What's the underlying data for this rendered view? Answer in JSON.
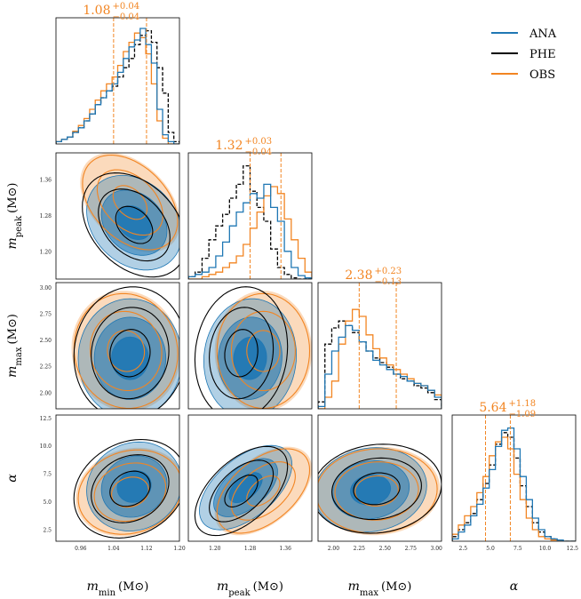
{
  "colors": {
    "ANA": "#1f77b4",
    "PHE": "#000000",
    "OBS": "#F28522",
    "fill_dark": "#1f77b4"
  },
  "legend": [
    {
      "label": "ANA",
      "color": "#1f77b4"
    },
    {
      "label": "PHE",
      "color": "#000000"
    },
    {
      "label": "OBS",
      "color": "#F28522"
    }
  ],
  "chart_data": {
    "type": "corner",
    "parameters": [
      {
        "key": "m_min",
        "label_sym": "m",
        "label_sub": "min",
        "label_unit": "(M⊙)",
        "range": [
          0.9,
          1.2
        ],
        "ticks": [
          "0.96",
          "1.04",
          "1.12",
          "1.20"
        ],
        "tick_values": [
          0.96,
          1.04,
          1.12,
          1.2
        ]
      },
      {
        "key": "m_peak",
        "label_sym": "m",
        "label_sub": "peak",
        "label_unit": "(M⊙)",
        "range": [
          1.14,
          1.42
        ],
        "ticks": [
          "1.20",
          "1.28",
          "1.36"
        ],
        "tick_values": [
          1.2,
          1.28,
          1.36
        ]
      },
      {
        "key": "m_max",
        "label_sym": "m",
        "label_sub": "max",
        "label_unit": "(M⊙)",
        "range": [
          1.85,
          3.05
        ],
        "ticks": [
          "2.00",
          "2.25",
          "2.50",
          "2.75",
          "3.00"
        ],
        "tick_values": [
          2.0,
          2.25,
          2.5,
          2.75,
          3.0
        ]
      },
      {
        "key": "alpha",
        "label_sym": "α",
        "label_sub": "",
        "label_unit": "",
        "range": [
          1.5,
          12.8
        ],
        "ticks": [
          "2.5",
          "5.0",
          "7.5",
          "10.0",
          "12.5"
        ],
        "tick_values": [
          2.5,
          5.0,
          7.5,
          10.0,
          12.5
        ]
      }
    ],
    "titles": [
      {
        "median": "1.08",
        "plus": "+0.04",
        "minus": "−0.04",
        "lo": 1.04,
        "hi": 1.12
      },
      {
        "median": "1.32",
        "plus": "+0.03",
        "minus": "−0.04",
        "lo": 1.28,
        "hi": 1.35
      },
      {
        "median": "2.38",
        "plus": "+0.23",
        "minus": "−0.13",
        "lo": 2.25,
        "hi": 2.61
      },
      {
        "median": "5.64",
        "plus": "+1.18",
        "minus": "−1.09",
        "lo": 4.55,
        "hi": 6.82
      }
    ],
    "histograms": [
      {
        "ANA": [
          0.02,
          0.04,
          0.06,
          0.1,
          0.14,
          0.2,
          0.26,
          0.34,
          0.4,
          0.46,
          0.52,
          0.62,
          0.74,
          0.84,
          0.9,
          1.0,
          0.86,
          0.7,
          0.3,
          0.08,
          0.02,
          0.0
        ],
        "PHE": [
          0.02,
          0.04,
          0.06,
          0.1,
          0.14,
          0.2,
          0.26,
          0.34,
          0.4,
          0.46,
          0.5,
          0.58,
          0.66,
          0.74,
          0.86,
          0.94,
          0.98,
          0.88,
          0.66,
          0.44,
          0.1,
          0.02
        ],
        "OBS": [
          0.02,
          0.04,
          0.06,
          0.11,
          0.16,
          0.22,
          0.3,
          0.38,
          0.46,
          0.52,
          0.58,
          0.68,
          0.8,
          0.88,
          0.96,
          0.92,
          0.78,
          0.52,
          0.2,
          0.05,
          0.0,
          0.0
        ]
      },
      {
        "ANA": [
          0.02,
          0.04,
          0.06,
          0.1,
          0.2,
          0.32,
          0.46,
          0.58,
          0.66,
          0.74,
          0.7,
          0.82,
          0.62,
          0.5,
          0.24,
          0.1,
          0.03,
          0.01
        ],
        "PHE": [
          0.02,
          0.06,
          0.18,
          0.34,
          0.46,
          0.56,
          0.7,
          0.82,
          0.98,
          0.76,
          0.62,
          0.5,
          0.26,
          0.1,
          0.04,
          0.01,
          0.0,
          0.0
        ],
        "OBS": [
          0.0,
          0.0,
          0.02,
          0.04,
          0.06,
          0.1,
          0.14,
          0.2,
          0.3,
          0.44,
          0.58,
          0.72,
          0.8,
          0.74,
          0.52,
          0.34,
          0.18,
          0.06
        ]
      },
      {
        "ANA": [
          0.02,
          0.3,
          0.5,
          0.62,
          0.72,
          0.68,
          0.58,
          0.5,
          0.42,
          0.38,
          0.34,
          0.3,
          0.28,
          0.24,
          0.22,
          0.2,
          0.16,
          0.1
        ],
        "PHE": [
          0.06,
          0.56,
          0.7,
          0.76,
          0.72,
          0.66,
          0.58,
          0.5,
          0.44,
          0.4,
          0.36,
          0.3,
          0.26,
          0.24,
          0.2,
          0.18,
          0.14,
          0.08
        ],
        "OBS": [
          0.0,
          0.1,
          0.24,
          0.56,
          0.76,
          0.86,
          0.8,
          0.64,
          0.52,
          0.44,
          0.38,
          0.34,
          0.3,
          0.26,
          0.22,
          0.2,
          0.16,
          0.12
        ]
      },
      {
        "ANA": [
          0.02,
          0.08,
          0.14,
          0.22,
          0.32,
          0.46,
          0.62,
          0.82,
          0.96,
          0.98,
          0.8,
          0.56,
          0.36,
          0.2,
          0.1,
          0.04,
          0.02,
          0.01,
          0.0,
          0.0
        ],
        "PHE": [
          0.04,
          0.1,
          0.16,
          0.24,
          0.36,
          0.5,
          0.66,
          0.84,
          0.94,
          0.9,
          0.72,
          0.48,
          0.3,
          0.16,
          0.08,
          0.04,
          0.02,
          0.0,
          0.0,
          0.0
        ],
        "OBS": [
          0.06,
          0.14,
          0.22,
          0.3,
          0.42,
          0.56,
          0.74,
          0.86,
          0.9,
          0.8,
          0.58,
          0.36,
          0.2,
          0.1,
          0.04,
          0.02,
          0.01,
          0.0,
          0.0,
          0.0
        ]
      }
    ],
    "contours": {
      "1,0": {
        "ANA": {
          "cx": 1.09,
          "cy": 1.265,
          "sx": 0.055,
          "sy": 0.05,
          "rho": -0.25
        },
        "PHE": {
          "cx": 1.09,
          "cy": 1.26,
          "sx": 0.06,
          "sy": 0.055,
          "rho": -0.35
        },
        "OBS": {
          "cx": 1.08,
          "cy": 1.31,
          "sx": 0.055,
          "sy": 0.05,
          "rho": -0.4
        }
      },
      "2,0": {
        "ANA": {
          "cx": 1.08,
          "cy": 2.33,
          "sx": 0.06,
          "sy": 0.27,
          "rho": 0.0
        },
        "PHE": {
          "cx": 1.08,
          "cy": 2.38,
          "sx": 0.065,
          "sy": 0.3,
          "rho": 0.05
        },
        "OBS": {
          "cx": 1.07,
          "cy": 2.4,
          "sx": 0.06,
          "sy": 0.26,
          "rho": -0.05
        }
      },
      "2,1": {
        "ANA": {
          "cx": 1.28,
          "cy": 2.33,
          "sx": 0.05,
          "sy": 0.27,
          "rho": 0.05
        },
        "PHE": {
          "cx": 1.26,
          "cy": 2.38,
          "sx": 0.05,
          "sy": 0.3,
          "rho": 0.1
        },
        "OBS": {
          "cx": 1.31,
          "cy": 2.4,
          "sx": 0.05,
          "sy": 0.26,
          "rho": 0.0
        }
      },
      "3,0": {
        "ANA": {
          "cx": 1.09,
          "cy": 6.4,
          "sx": 0.055,
          "sy": 1.9,
          "rho": 0.1
        },
        "PHE": {
          "cx": 1.08,
          "cy": 6.2,
          "sx": 0.065,
          "sy": 2.1,
          "rho": 0.2
        },
        "OBS": {
          "cx": 1.08,
          "cy": 5.9,
          "sx": 0.06,
          "sy": 1.8,
          "rho": 0.15
        }
      },
      "3,1": {
        "ANA": {
          "cx": 1.27,
          "cy": 6.3,
          "sx": 0.05,
          "sy": 1.8,
          "rho": 0.55
        },
        "PHE": {
          "cx": 1.26,
          "cy": 6.0,
          "sx": 0.05,
          "sy": 1.9,
          "rho": 0.55
        },
        "OBS": {
          "cx": 1.31,
          "cy": 6.0,
          "sx": 0.05,
          "sy": 1.8,
          "rho": 0.5
        }
      },
      "3,2": {
        "ANA": {
          "cx": 2.36,
          "cy": 6.1,
          "sx": 0.26,
          "sy": 1.8,
          "rho": 0.1
        },
        "PHE": {
          "cx": 2.42,
          "cy": 6.2,
          "sx": 0.3,
          "sy": 1.9,
          "rho": 0.1
        },
        "OBS": {
          "cx": 2.42,
          "cy": 6.0,
          "sx": 0.28,
          "sy": 1.8,
          "rho": 0.05
        }
      }
    }
  }
}
